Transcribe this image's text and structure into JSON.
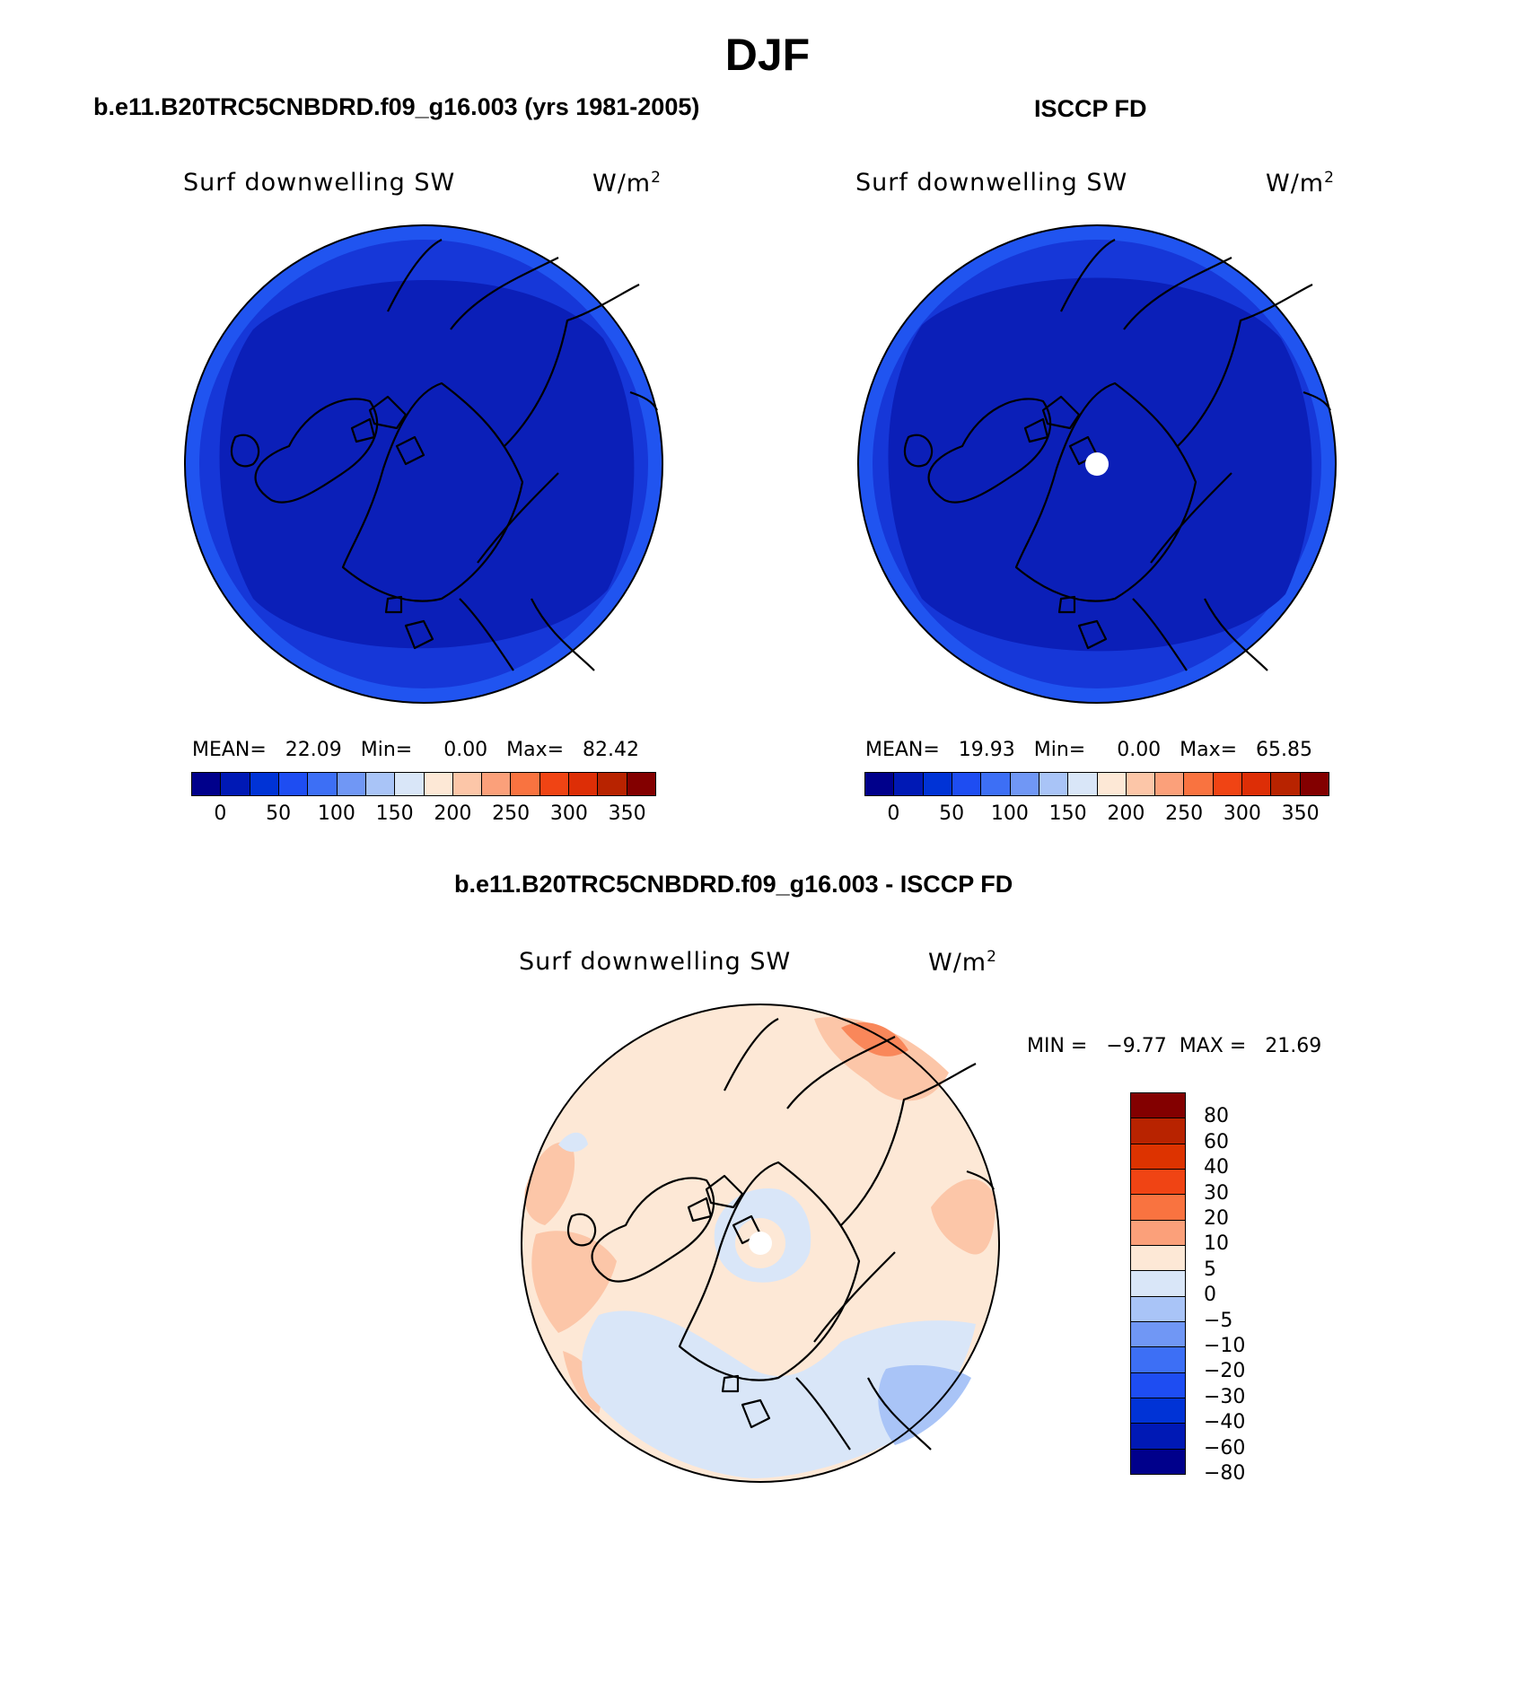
{
  "title": "DJF",
  "panels": {
    "model": {
      "title": "b.e11.B20TRC5CNBDRD.f09_g16.003 (yrs 1981-2005)",
      "variable": "Surf downwelling SW",
      "units": "W/m",
      "units_sup": "2",
      "stats": "MEAN=   22.09   Min=     0.00   Max=   82.42"
    },
    "obs": {
      "title": "ISCCP FD",
      "variable": "Surf downwelling SW",
      "units": "W/m",
      "units_sup": "2",
      "stats": "MEAN=   19.93   Min=     0.00   Max=   65.85"
    },
    "diff": {
      "title": "b.e11.B20TRC5CNBDRD.f09_g16.003 - ISCCP FD",
      "variable": "Surf downwelling SW",
      "units": "W/m",
      "units_sup": "2",
      "stats": "MIN =   −9.77  MAX =   21.69"
    }
  },
  "colorbar_abs": {
    "colors": [
      "#00008b",
      "#0019b5",
      "#0033d6",
      "#1e4df2",
      "#3d6ff5",
      "#7097f5",
      "#a9c4f7",
      "#d9e6f8",
      "#fde8d6",
      "#fcc6a8",
      "#fba07a",
      "#f97340",
      "#f04414",
      "#dd2e06",
      "#b82300",
      "#830000"
    ],
    "ticks": [
      "0",
      "50",
      "100",
      "150",
      "200",
      "250",
      "300",
      "350"
    ]
  },
  "colorbar_diff": {
    "colors": [
      "#830000",
      "#b82300",
      "#dd3300",
      "#f04414",
      "#f97340",
      "#fba07a",
      "#fde8d6",
      "#d9e6f8",
      "#a9c4f7",
      "#7097f5",
      "#3d6ff5",
      "#1e4df2",
      "#0033d6",
      "#0019b5",
      "#00008b"
    ],
    "ticks": [
      "80",
      "60",
      "40",
      "30",
      "20",
      "10",
      "5",
      "0",
      "−5",
      "−10",
      "−20",
      "−30",
      "−40",
      "−60",
      "−80"
    ]
  },
  "map_colors": {
    "ocean_dark": "#0b1fb8",
    "mid_blue": "#1637d8",
    "outer_blue": "#2054f0",
    "diff_base": "#fde8d6",
    "diff_light_blue": "#d9e6f8",
    "diff_mid_blue": "#a9c4f7",
    "diff_light_red": "#fcc6a8",
    "diff_red": "#f9875a"
  }
}
